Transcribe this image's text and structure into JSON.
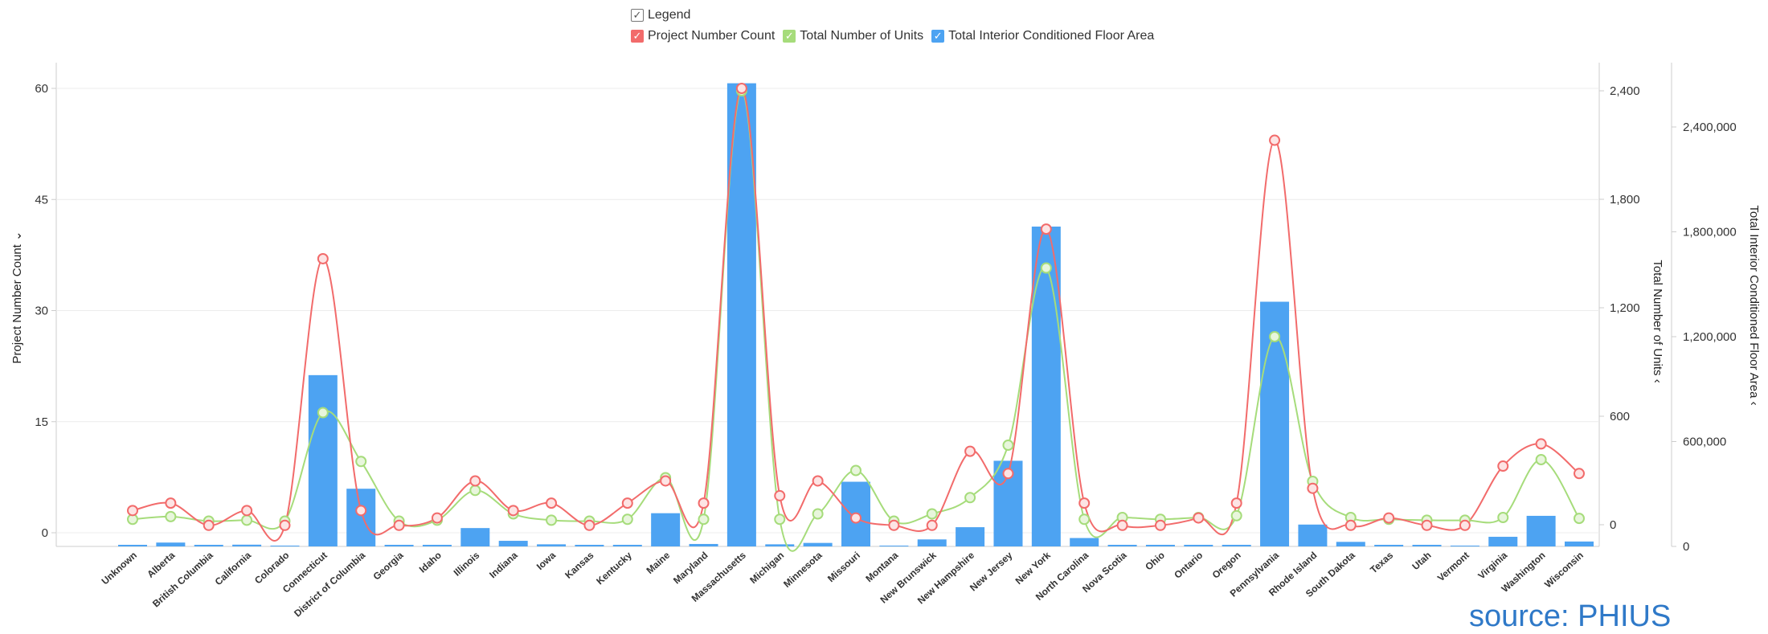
{
  "legend": {
    "title": "Legend",
    "items": [
      {
        "label": "Project Number Count",
        "color": "#f26b6b"
      },
      {
        "label": "Total Number of Units",
        "color": "#a6dc7b"
      },
      {
        "label": "Total Interior Conditioned Floor Area",
        "color": "#4da3f2"
      }
    ]
  },
  "source": "source: PHIUS",
  "chart_data": {
    "type": "bar",
    "legend_position": "top",
    "grid": true,
    "categories": [
      "Unknown",
      "Alberta",
      "British Columbia",
      "California",
      "Colorado",
      "Connecticut",
      "District of Columbia",
      "Georgia",
      "Idaho",
      "Illinois",
      "Indiana",
      "Iowa",
      "Kansas",
      "Kentucky",
      "Maine",
      "Maryland",
      "Massachusetts",
      "Michigan",
      "Minnesota",
      "Missouri",
      "Montana",
      "New Brunswick",
      "New Hampshire",
      "New Jersey",
      "New York",
      "North Carolina",
      "Nova Scotia",
      "Ohio",
      "Ontario",
      "Oregon",
      "Pennsylvania",
      "Rhode Island",
      "South Dakota",
      "Texas",
      "Utah",
      "Vermont",
      "Virginia",
      "Washington",
      "Wisconsin"
    ],
    "series": [
      {
        "name": "Project Number Count",
        "type": "line",
        "axis": "left",
        "color": "#f26b6b",
        "values": [
          3,
          4,
          1,
          3,
          1,
          37,
          3,
          1,
          2,
          7,
          3,
          4,
          1,
          4,
          7,
          4,
          60,
          5,
          7,
          2,
          1,
          1,
          11,
          8,
          41,
          4,
          1,
          1,
          2,
          4,
          53,
          6,
          1,
          2,
          1,
          1,
          9,
          12,
          8
        ]
      },
      {
        "name": "Total Number of Units",
        "type": "line",
        "axis": "right",
        "color": "#a6dc7b",
        "values": [
          30,
          45,
          20,
          25,
          20,
          620,
          350,
          20,
          25,
          190,
          60,
          25,
          20,
          30,
          260,
          30,
          2400,
          30,
          60,
          300,
          20,
          60,
          150,
          440,
          1420,
          30,
          40,
          30,
          40,
          50,
          1040,
          240,
          40,
          30,
          25,
          25,
          40,
          360,
          35
        ]
      },
      {
        "name": "Total Interior Conditioned Floor Area",
        "type": "bar",
        "axis": "right2",
        "color": "#4da3f2",
        "values": [
          8000,
          22000,
          6000,
          10000,
          0,
          980000,
          330000,
          4000,
          5000,
          105000,
          32000,
          12000,
          3000,
          9000,
          190000,
          14000,
          2650000,
          12000,
          20000,
          370000,
          0,
          40000,
          110000,
          490000,
          1830000,
          48000,
          5000,
          2000,
          4000,
          9000,
          1400000,
          125000,
          26000,
          4000,
          2000,
          0,
          55000,
          175000,
          28000
        ]
      }
    ],
    "y_left": {
      "label": "Project Number Count",
      "ticks": [
        "0",
        "15",
        "30",
        "45",
        "60"
      ],
      "range": [
        -2.5,
        62
      ]
    },
    "y_right": {
      "label": "Total Number of Units",
      "ticks": [
        "0",
        "600",
        "1,200",
        "1,800",
        "2,400"
      ],
      "range": [
        -100,
        2480
      ]
    },
    "y_right2": {
      "label": "Total Interior Conditioned Floor Area",
      "ticks": [
        "0",
        "600,000",
        "1,200,000",
        "1,800,000",
        "2,400,000"
      ],
      "range": [
        0,
        2700000
      ]
    }
  }
}
